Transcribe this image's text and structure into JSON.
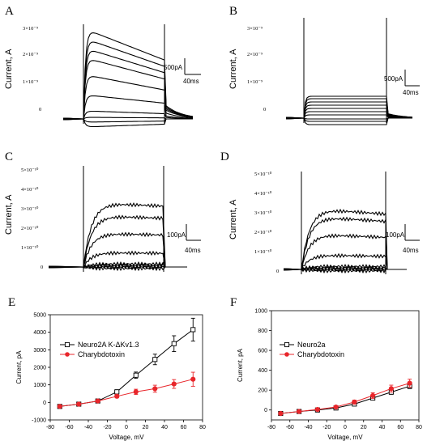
{
  "panels": {
    "A": {
      "label": "A",
      "ylabel": "Current, A",
      "ticks": [
        "3×10⁻⁹",
        "2×10⁻⁹",
        "1×10⁻⁹",
        "0"
      ],
      "scale_current": "500pA",
      "scale_time": "40ms"
    },
    "B": {
      "label": "B",
      "ylabel": "Current, A",
      "ticks": [
        "3×10⁻⁹",
        "2×10⁻⁹",
        "1×10⁻⁹",
        "0"
      ],
      "scale_current": "500pA",
      "scale_time": "40ms"
    },
    "C": {
      "label": "C",
      "ylabel": "Current, A",
      "ticks": [
        "5×10⁻¹⁰",
        "4×10⁻¹⁰",
        "3×10⁻¹⁰",
        "2×10⁻¹⁰",
        "1×10⁻¹⁰",
        "0"
      ],
      "scale_current": "100pA",
      "scale_time": "40ms"
    },
    "D": {
      "label": "D",
      "ylabel": "Current, A",
      "ticks": [
        "5×10⁻¹⁰",
        "4×10⁻¹⁰",
        "3×10⁻¹⁰",
        "2×10⁻¹⁰",
        "1×10⁻¹⁰",
        "0"
      ],
      "scale_current": "100pA",
      "scale_time": "40ms"
    },
    "E": {
      "label": "E"
    },
    "F": {
      "label": "F"
    }
  },
  "chart_data": [
    {
      "panel": "E",
      "type": "line",
      "xlabel": "Voltage, mV",
      "ylabel": "Current, pA",
      "xlim": [
        -80,
        80
      ],
      "ylim": [
        -1000,
        5000
      ],
      "xticks": [
        -80,
        -60,
        -40,
        -20,
        0,
        20,
        40,
        60,
        80
      ],
      "yticks": [
        -1000,
        0,
        1000,
        2000,
        3000,
        4000,
        5000
      ],
      "legend_position": "left",
      "series": [
        {
          "name": "Neuro2A K-ΔKv1.3",
          "marker": "open-square",
          "color": "#000000",
          "x": [
            -70,
            -50,
            -30,
            -10,
            10,
            30,
            50,
            70
          ],
          "y": [
            -230,
            -100,
            80,
            600,
            1550,
            2450,
            3350,
            4150
          ],
          "err": [
            40,
            40,
            60,
            120,
            180,
            300,
            450,
            650
          ]
        },
        {
          "name": "Charybdotoxin",
          "marker": "filled-circle",
          "color": "#e8262b",
          "x": [
            -70,
            -50,
            -30,
            -10,
            10,
            30,
            50,
            70
          ],
          "y": [
            -230,
            -100,
            80,
            350,
            600,
            780,
            1050,
            1320
          ],
          "err": [
            40,
            40,
            50,
            90,
            150,
            200,
            250,
            400
          ]
        }
      ]
    },
    {
      "panel": "F",
      "type": "line",
      "xlabel": "Voltage, mV",
      "ylabel": "Current, pA",
      "xlim": [
        -80,
        80
      ],
      "ylim": [
        -100,
        1000
      ],
      "xticks": [
        -80,
        -60,
        -40,
        -20,
        0,
        20,
        40,
        60,
        80
      ],
      "yticks": [
        0,
        200,
        400,
        600,
        800,
        1000
      ],
      "legend_position": "top-left",
      "series": [
        {
          "name": "Neuro2a",
          "marker": "open-square",
          "color": "#000000",
          "x": [
            -70,
            -50,
            -30,
            -10,
            10,
            30,
            50,
            70
          ],
          "y": [
            -35,
            -15,
            0,
            20,
            60,
            120,
            180,
            240
          ],
          "err": [
            8,
            8,
            8,
            10,
            12,
            18,
            22,
            25
          ]
        },
        {
          "name": "Charybdotoxin",
          "marker": "filled-circle",
          "color": "#e8262b",
          "x": [
            -70,
            -50,
            -30,
            -10,
            10,
            30,
            50,
            70
          ],
          "y": [
            -35,
            -15,
            5,
            30,
            80,
            145,
            215,
            270
          ],
          "err": [
            8,
            8,
            10,
            12,
            20,
            28,
            35,
            40
          ]
        }
      ]
    }
  ]
}
